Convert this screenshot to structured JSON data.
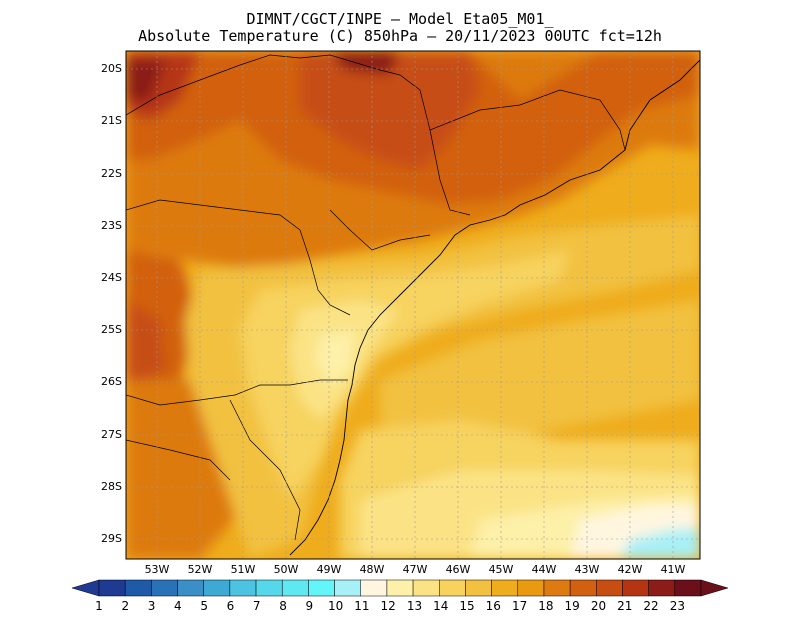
{
  "title": {
    "line1": "DIMNT/CGCT/INPE —  Model Eta05_M01_",
    "line2": "Absolute Temperature (C) 850hPa —  20/11/2023 00UTC fct=12h"
  },
  "axes": {
    "lat_ticks": [
      "20S",
      "21S",
      "22S",
      "23S",
      "24S",
      "25S",
      "26S",
      "27S",
      "28S",
      "29S"
    ],
    "lon_ticks": [
      "53W",
      "52W",
      "51W",
      "50W",
      "49W",
      "48W",
      "47W",
      "46W",
      "45W",
      "44W",
      "43W",
      "42W",
      "41W"
    ]
  },
  "colorbar": {
    "labels": [
      "1",
      "2",
      "3",
      "4",
      "5",
      "6",
      "7",
      "8",
      "9",
      "10",
      "11",
      "12",
      "13",
      "14",
      "15",
      "16",
      "17",
      "18",
      "19",
      "20",
      "21",
      "22",
      "23"
    ],
    "colors": [
      "#1f3a93",
      "#1e5aa8",
      "#2a72b8",
      "#3a8fc7",
      "#3fa9d6",
      "#4cc3e0",
      "#55d8ea",
      "#5ee8f2",
      "#63f5f8",
      "#a7f0f7",
      "#fff6e0",
      "#fdf0a8",
      "#fbe385",
      "#f7d35e",
      "#f2c13f",
      "#efac1c",
      "#e99a10",
      "#dd7a10",
      "#d26010",
      "#c74d12",
      "#b53513",
      "#8b1c17",
      "#6b0f1a"
    ]
  },
  "map": {
    "icons": [
      "coastline-icon",
      "state-border-icon"
    ]
  }
}
